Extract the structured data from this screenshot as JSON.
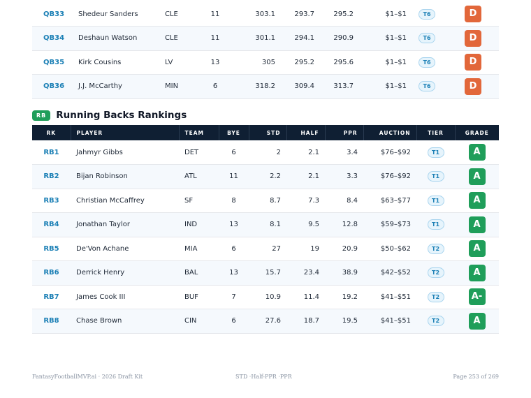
{
  "qb_rows": [
    {
      "rank": "QB33",
      "player": "Shedeur Sanders",
      "team": "CLE",
      "bye": "11",
      "std": "303.1",
      "half": "293.7",
      "ppr": "295.2",
      "auction": "$1–$1",
      "tier": "T6",
      "grade": "D"
    },
    {
      "rank": "QB34",
      "player": "Deshaun Watson",
      "team": "CLE",
      "bye": "11",
      "std": "301.1",
      "half": "294.1",
      "ppr": "290.9",
      "auction": "$1–$1",
      "tier": "T6",
      "grade": "D"
    },
    {
      "rank": "QB35",
      "player": "Kirk Cousins",
      "team": "LV",
      "bye": "13",
      "std": "305",
      "half": "295.2",
      "ppr": "295.6",
      "auction": "$1–$1",
      "tier": "T6",
      "grade": "D"
    },
    {
      "rank": "QB36",
      "player": "J.J. McCarthy",
      "team": "MIN",
      "bye": "6",
      "std": "318.2",
      "half": "309.4",
      "ppr": "313.7",
      "auction": "$1–$1",
      "tier": "T6",
      "grade": "D"
    }
  ],
  "rb_section": {
    "badge": "RB",
    "title": "Running Backs Rankings",
    "headers": {
      "rk": "RK",
      "player": "PLAYER",
      "team": "TEAM",
      "bye": "BYE",
      "std": "STD",
      "half": "HALF",
      "ppr": "PPR",
      "auction": "AUCTION",
      "tier": "TIER",
      "grade": "GRADE"
    },
    "rows": [
      {
        "rank": "RB1",
        "player": "Jahmyr Gibbs",
        "team": "DET",
        "bye": "6",
        "std": "2",
        "half": "2.1",
        "ppr": "3.4",
        "auction": "$76–$92",
        "tier": "T1",
        "grade": "A"
      },
      {
        "rank": "RB2",
        "player": "Bijan Robinson",
        "team": "ATL",
        "bye": "11",
        "std": "2.2",
        "half": "2.1",
        "ppr": "3.3",
        "auction": "$76–$92",
        "tier": "T1",
        "grade": "A"
      },
      {
        "rank": "RB3",
        "player": "Christian McCaffrey",
        "team": "SF",
        "bye": "8",
        "std": "8.7",
        "half": "7.3",
        "ppr": "8.4",
        "auction": "$63–$77",
        "tier": "T1",
        "grade": "A"
      },
      {
        "rank": "RB4",
        "player": "Jonathan Taylor",
        "team": "IND",
        "bye": "13",
        "std": "8.1",
        "half": "9.5",
        "ppr": "12.8",
        "auction": "$59–$73",
        "tier": "T1",
        "grade": "A"
      },
      {
        "rank": "RB5",
        "player": "De'Von Achane",
        "team": "MIA",
        "bye": "6",
        "std": "27",
        "half": "19",
        "ppr": "20.9",
        "auction": "$50–$62",
        "tier": "T2",
        "grade": "A"
      },
      {
        "rank": "RB6",
        "player": "Derrick Henry",
        "team": "BAL",
        "bye": "13",
        "std": "15.7",
        "half": "23.4",
        "ppr": "38.9",
        "auction": "$42–$52",
        "tier": "T2",
        "grade": "A"
      },
      {
        "rank": "RB7",
        "player": "James Cook III",
        "team": "BUF",
        "bye": "7",
        "std": "10.9",
        "half": "11.4",
        "ppr": "19.2",
        "auction": "$41–$51",
        "tier": "T2",
        "grade": "A-"
      },
      {
        "rank": "RB8",
        "player": "Chase Brown",
        "team": "CIN",
        "bye": "6",
        "std": "27.6",
        "half": "18.7",
        "ppr": "19.5",
        "auction": "$41–$51",
        "tier": "T2",
        "grade": "A"
      }
    ]
  },
  "footer": {
    "left": "FantasyFootballMVP.ai · 2026 Draft Kit",
    "center": "STD ·Half-PPR ·PPR",
    "right": "Page 253 of 269"
  },
  "colors": {
    "grade_d": "#e2673a",
    "grade_a": "#1f9e5a",
    "header_bg": "#0f1f33",
    "rank_text": "#1a7fb5"
  }
}
